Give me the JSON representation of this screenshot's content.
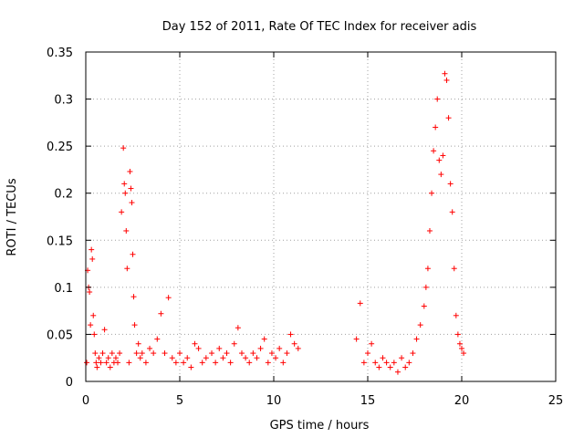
{
  "chart_data": {
    "type": "scatter",
    "title": "Day 152 of 2011, Rate Of TEC Index for receiver adis",
    "xlabel": "GPS time / hours",
    "ylabel": "ROTI / TECUs",
    "xlim": [
      0,
      25
    ],
    "ylim": [
      0,
      0.35
    ],
    "xticks": [
      "0",
      "5",
      "10",
      "15",
      "20",
      "25"
    ],
    "yticks": [
      "0",
      "0.05",
      "0.1",
      "0.15",
      "0.2",
      "0.25",
      "0.3",
      "0.35"
    ],
    "grid": true,
    "marker": "+",
    "color": "#ff0000",
    "series": [
      {
        "x": [
          0.05,
          0.1,
          0.15,
          0.2,
          0.25,
          0.3,
          0.35,
          0.4,
          0.45,
          0.5,
          0.55,
          0.6,
          0.7,
          0.8,
          0.9,
          1.0,
          1.1,
          1.2,
          1.3,
          1.4,
          1.5,
          1.6,
          1.7,
          1.8,
          1.9,
          2.0,
          2.05,
          2.1,
          2.15,
          2.2,
          2.3,
          2.35,
          2.4,
          2.45,
          2.5,
          2.55,
          2.6,
          2.7,
          2.8,
          2.9,
          3.0,
          3.2,
          3.4,
          3.6,
          3.8,
          4.0,
          4.2,
          4.4,
          4.6,
          4.8,
          5.0,
          5.2,
          5.4,
          5.6,
          5.8,
          6.0,
          6.2,
          6.4,
          6.7,
          6.9,
          7.1,
          7.3,
          7.5,
          7.7,
          7.9,
          8.1,
          8.3,
          8.5,
          8.7,
          8.9,
          9.1,
          9.3,
          9.5,
          9.7,
          9.9,
          10.1,
          10.3,
          10.5,
          10.7,
          10.9,
          11.1,
          11.3,
          14.4,
          14.6,
          14.8,
          15.0,
          15.2,
          15.4,
          15.6,
          15.8,
          16.0,
          16.2,
          16.4,
          16.6,
          16.8,
          17.0,
          17.2,
          17.4,
          17.6,
          17.8,
          18.0,
          18.1,
          18.2,
          18.3,
          18.4,
          18.5,
          18.6,
          18.7,
          18.8,
          18.9,
          19.0,
          19.1,
          19.2,
          19.3,
          19.4,
          19.5,
          19.6,
          19.7,
          19.8,
          19.9,
          20.0,
          20.1
        ],
        "y": [
          0.02,
          0.118,
          0.1,
          0.095,
          0.06,
          0.14,
          0.13,
          0.07,
          0.05,
          0.03,
          0.02,
          0.015,
          0.025,
          0.02,
          0.03,
          0.055,
          0.02,
          0.025,
          0.015,
          0.03,
          0.02,
          0.025,
          0.02,
          0.03,
          0.18,
          0.248,
          0.21,
          0.2,
          0.16,
          0.12,
          0.02,
          0.223,
          0.205,
          0.19,
          0.135,
          0.09,
          0.06,
          0.03,
          0.04,
          0.025,
          0.03,
          0.02,
          0.035,
          0.03,
          0.045,
          0.072,
          0.03,
          0.089,
          0.025,
          0.02,
          0.03,
          0.02,
          0.025,
          0.015,
          0.04,
          0.035,
          0.02,
          0.025,
          0.03,
          0.02,
          0.035,
          0.025,
          0.03,
          0.02,
          0.04,
          0.057,
          0.03,
          0.025,
          0.02,
          0.03,
          0.025,
          0.035,
          0.045,
          0.02,
          0.03,
          0.025,
          0.035,
          0.02,
          0.03,
          0.05,
          0.04,
          0.035,
          0.045,
          0.083,
          0.02,
          0.03,
          0.04,
          0.02,
          0.015,
          0.025,
          0.02,
          0.015,
          0.02,
          0.01,
          0.025,
          0.015,
          0.02,
          0.03,
          0.045,
          0.06,
          0.08,
          0.1,
          0.12,
          0.16,
          0.2,
          0.245,
          0.27,
          0.3,
          0.235,
          0.22,
          0.24,
          0.327,
          0.32,
          0.28,
          0.21,
          0.18,
          0.12,
          0.07,
          0.05,
          0.04,
          0.035,
          0.03
        ]
      }
    ]
  }
}
